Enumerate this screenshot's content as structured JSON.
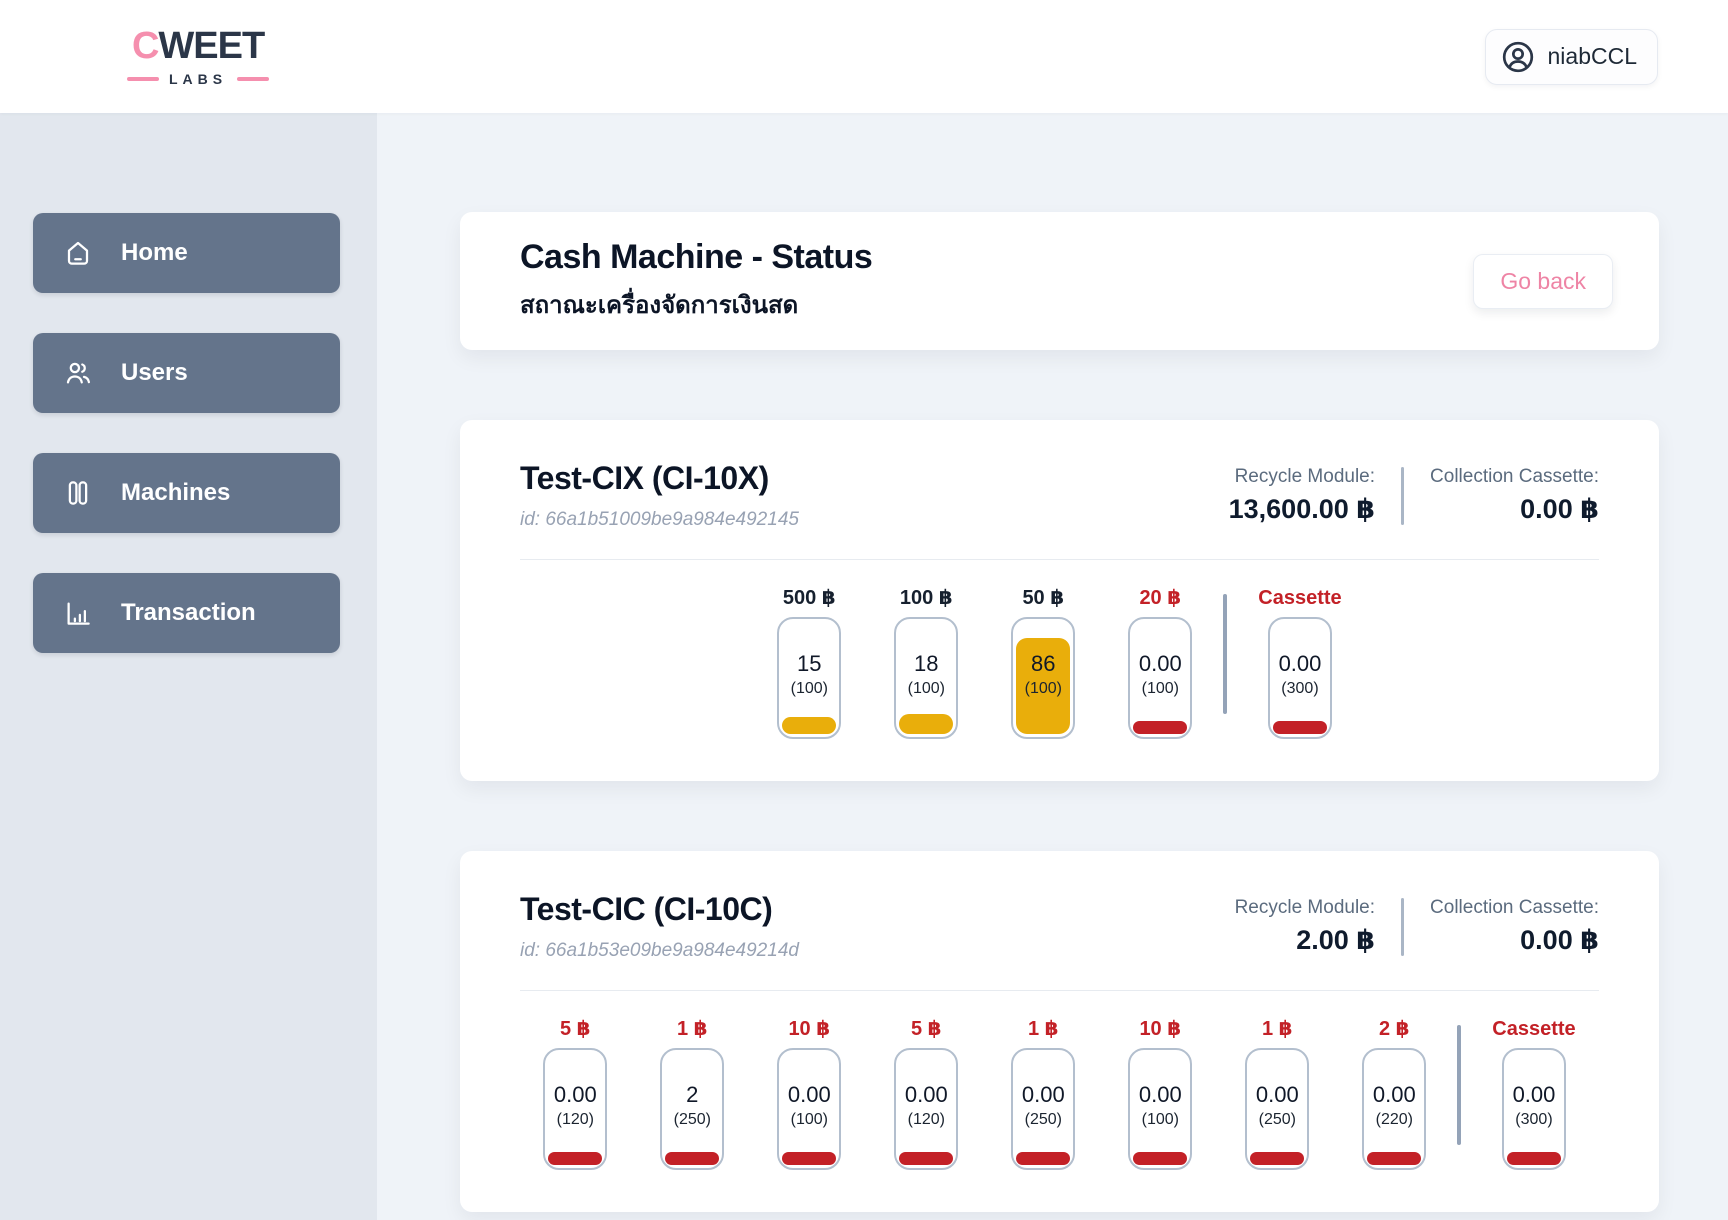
{
  "brand": {
    "accent": "C",
    "rest": "WEET",
    "sub": "LABS"
  },
  "header": {
    "user_label": "niabCCL"
  },
  "sidebar": {
    "items": [
      {
        "label": "Home",
        "icon": "home-icon"
      },
      {
        "label": "Users",
        "icon": "users-icon"
      },
      {
        "label": "Machines",
        "icon": "machines-icon"
      },
      {
        "label": "Transaction",
        "icon": "transaction-icon"
      }
    ]
  },
  "status_card": {
    "title": "Cash Machine - Status",
    "subtitle": "สถาณะเครื่องจัดการเงินสด",
    "go_back_label": "Go back"
  },
  "colors": {
    "accent_pink": "#f58fae",
    "warning_yellow": "#e9ae0b",
    "danger_red": "#c32127",
    "sidebar_button": "#64748b"
  },
  "machines": [
    {
      "name": "Test-CIX (CI-10X)",
      "id_line": "id: 66a1b51009be9a984e492145",
      "recycle_module_label": "Recycle Module:",
      "recycle_module_value": "13,600.00 ฿",
      "collection_cassette_label": "Collection Cassette:",
      "collection_cassette_value": "0.00 ฿",
      "cassettes": [
        {
          "label": "500 ฿",
          "label_state": "ok",
          "value": "15",
          "capacity": "(100)",
          "fill_pct": 15,
          "fill_state": "warning"
        },
        {
          "label": "100 ฿",
          "label_state": "ok",
          "value": "18",
          "capacity": "(100)",
          "fill_pct": 18,
          "fill_state": "warning"
        },
        {
          "label": "50 ฿",
          "label_state": "ok",
          "value": "86",
          "capacity": "(100)",
          "fill_pct": 86,
          "fill_state": "warning"
        },
        {
          "label": "20 ฿",
          "label_state": "danger",
          "value": "0.00",
          "capacity": "(100)",
          "fill_pct": 0,
          "fill_state": "danger"
        }
      ],
      "collection": {
        "label": "Cassette",
        "label_state": "danger",
        "value": "0.00",
        "capacity": "(300)",
        "fill_pct": 0,
        "fill_state": "danger"
      }
    },
    {
      "name": "Test-CIC (CI-10C)",
      "id_line": "id: 66a1b53e09be9a984e49214d",
      "recycle_module_label": "Recycle Module:",
      "recycle_module_value": "2.00 ฿",
      "collection_cassette_label": "Collection Cassette:",
      "collection_cassette_value": "0.00 ฿",
      "cassettes": [
        {
          "label": "5 ฿",
          "label_state": "danger",
          "value": "0.00",
          "capacity": "(120)",
          "fill_pct": 0,
          "fill_state": "danger"
        },
        {
          "label": "1 ฿",
          "label_state": "danger",
          "value": "2",
          "capacity": "(250)",
          "fill_pct": 1,
          "fill_state": "danger"
        },
        {
          "label": "10 ฿",
          "label_state": "danger",
          "value": "0.00",
          "capacity": "(100)",
          "fill_pct": 0,
          "fill_state": "danger"
        },
        {
          "label": "5 ฿",
          "label_state": "danger",
          "value": "0.00",
          "capacity": "(120)",
          "fill_pct": 0,
          "fill_state": "danger"
        },
        {
          "label": "1 ฿",
          "label_state": "danger",
          "value": "0.00",
          "capacity": "(250)",
          "fill_pct": 0,
          "fill_state": "danger"
        },
        {
          "label": "10 ฿",
          "label_state": "danger",
          "value": "0.00",
          "capacity": "(100)",
          "fill_pct": 0,
          "fill_state": "danger"
        },
        {
          "label": "1 ฿",
          "label_state": "danger",
          "value": "0.00",
          "capacity": "(250)",
          "fill_pct": 0,
          "fill_state": "danger"
        },
        {
          "label": "2 ฿",
          "label_state": "danger",
          "value": "0.00",
          "capacity": "(220)",
          "fill_pct": 0,
          "fill_state": "danger"
        }
      ],
      "collection": {
        "label": "Cassette",
        "label_state": "danger",
        "value": "0.00",
        "capacity": "(300)",
        "fill_pct": 0,
        "fill_state": "danger"
      }
    }
  ]
}
